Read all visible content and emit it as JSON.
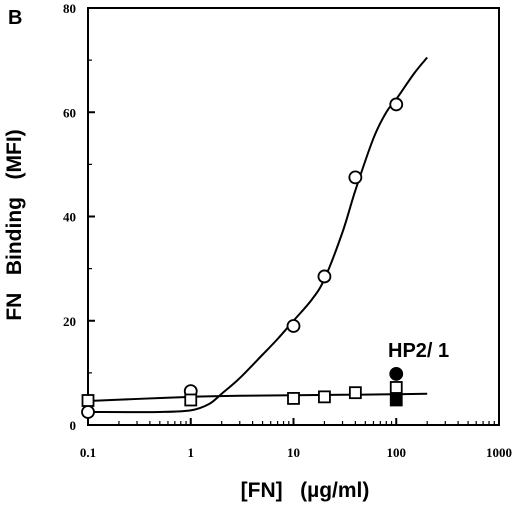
{
  "chart_data": {
    "type": "scatter",
    "panel_label": "B",
    "xlabel": "[FN]   (µg/ml)",
    "ylabel": "FN   Binding   (MFI)",
    "x_scale": "log",
    "xlim": [
      0.1,
      1000
    ],
    "ylim": [
      0,
      80
    ],
    "x_ticks": [
      0.1,
      1,
      10,
      100,
      1000
    ],
    "x_tick_labels": [
      "0.1",
      "1",
      "10",
      "100",
      "1000"
    ],
    "y_ticks": [
      0,
      20,
      40,
      60,
      80
    ],
    "y_tick_labels": [
      "0",
      "20",
      "40",
      "60",
      "80"
    ],
    "grid": false,
    "annotation": "HP2/ 1",
    "series": [
      {
        "marker": "open-circle",
        "x": [
          0.1,
          1,
          10,
          20,
          40,
          100
        ],
        "y": [
          2.5,
          6.5,
          19,
          28.5,
          47.5,
          61.5
        ],
        "fit_curve": {
          "x": [
            0.1,
            0.5,
            1,
            1.5,
            2,
            3,
            5,
            7,
            10,
            15,
            20,
            30,
            40,
            60,
            80,
            100,
            150,
            200
          ],
          "y": [
            2.5,
            2.5,
            2.8,
            4,
            6,
            9,
            13.5,
            16.5,
            20,
            24,
            28,
            37,
            45,
            55,
            60,
            62.5,
            67.5,
            70.5
          ]
        }
      },
      {
        "marker": "open-square",
        "x": [
          0.1,
          1,
          10,
          20,
          40,
          100
        ],
        "y": [
          4.7,
          4.8,
          5.1,
          5.4,
          6.2,
          7.2
        ],
        "fit_curve": {
          "x": [
            0.1,
            0.3,
            1,
            3,
            10,
            30,
            100,
            200
          ],
          "y": [
            4.6,
            5,
            5.4,
            5.6,
            5.7,
            5.8,
            5.9,
            6
          ]
        }
      },
      {
        "marker": "filled-circle",
        "x": [
          100
        ],
        "y": [
          9.8
        ]
      },
      {
        "marker": "filled-square",
        "x": [
          100
        ],
        "y": [
          4.8
        ]
      }
    ]
  }
}
